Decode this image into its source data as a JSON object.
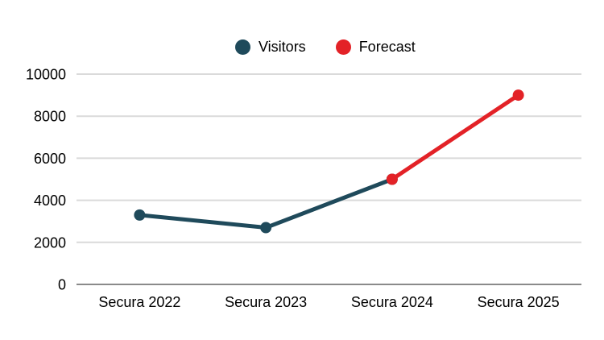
{
  "chart_data": {
    "type": "line",
    "title": "",
    "categories": [
      "Secura 2022",
      "Secura 2023",
      "Secura 2024",
      "Secura 2025"
    ],
    "series": [
      {
        "name": "Visitors",
        "color": "#1F4A5B",
        "values": [
          3300,
          2700,
          5000,
          null
        ]
      },
      {
        "name": "Forecast",
        "color": "#E32227",
        "values": [
          null,
          null,
          5000,
          9000
        ]
      }
    ],
    "ylim": [
      0,
      10000
    ],
    "yticks": [
      0,
      2000,
      4000,
      6000,
      8000,
      10000
    ],
    "xlabel": "",
    "ylabel": "",
    "grid": true,
    "legend_position": "top-center",
    "background_color": "#FFFFFF",
    "gridline_color": "#DADADA",
    "axis_line_color": "#8A8A8A",
    "text_color": "#000000"
  }
}
